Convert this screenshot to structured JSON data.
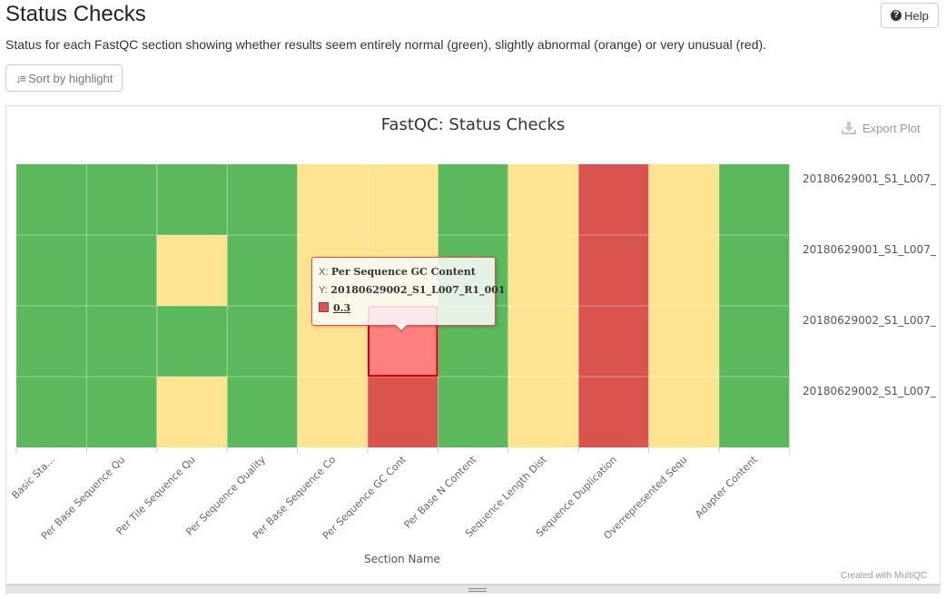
{
  "page": {
    "title": "Status Checks",
    "description": "Status for each FastQC section showing whether results seem entirely normal (green), slightly abnormal (orange) or very unusual (red).",
    "help_label": "Help",
    "help_icon": "question-circle-icon",
    "sort_label": "Sort by highlight",
    "sort_icon": "sort-icon",
    "export_label": "Export Plot",
    "export_icon": "download-icon",
    "credit": "Created with MultiQC"
  },
  "colors": {
    "pass": "#5cb85c",
    "warn": "#fee391",
    "fail": "#d9534f",
    "hover": "#ff8080",
    "hover_border": "#dd0000"
  },
  "chart_data": {
    "type": "heatmap",
    "title": "FastQC: Status Checks",
    "xlabel": "Section Name",
    "ylabel": "",
    "x_categories": [
      "Basic Sta...",
      "Per Base Sequence Qu",
      "Per Tile Sequence Qu",
      "Per Sequence Quality",
      "Per Base Sequence Co",
      "Per Sequence GC Cont",
      "Per Base N Content",
      "Sequence Length Dist",
      "Sequence Duplication",
      "Overrepresented Sequ",
      "Adapter Content"
    ],
    "y_categories": [
      "20180629001_S1_L007_",
      "20180629001_S1_L007_",
      "20180629002_S1_L007_",
      "20180629002_S1_L007_"
    ],
    "value_legend": {
      "1": "pass",
      "0.5": "warn",
      "0.3": "fail"
    },
    "values": [
      [
        1,
        1,
        1,
        1,
        0.5,
        0.5,
        1,
        0.5,
        0.3,
        0.5,
        1
      ],
      [
        1,
        1,
        0.5,
        1,
        0.5,
        0.5,
        1,
        0.5,
        0.3,
        0.5,
        1
      ],
      [
        1,
        1,
        1,
        1,
        0.5,
        0.3,
        1,
        0.5,
        0.3,
        0.5,
        1
      ],
      [
        1,
        1,
        0.5,
        1,
        0.5,
        0.3,
        1,
        0.5,
        0.3,
        0.5,
        1
      ]
    ],
    "highlighted_cell": {
      "row": 2,
      "col": 5
    }
  },
  "tooltip": {
    "x_key": "X:",
    "x_value": "Per Sequence GC Content",
    "y_key": "Y:",
    "y_value": "20180629002_S1_L007_R1_001",
    "value": "0.3"
  }
}
